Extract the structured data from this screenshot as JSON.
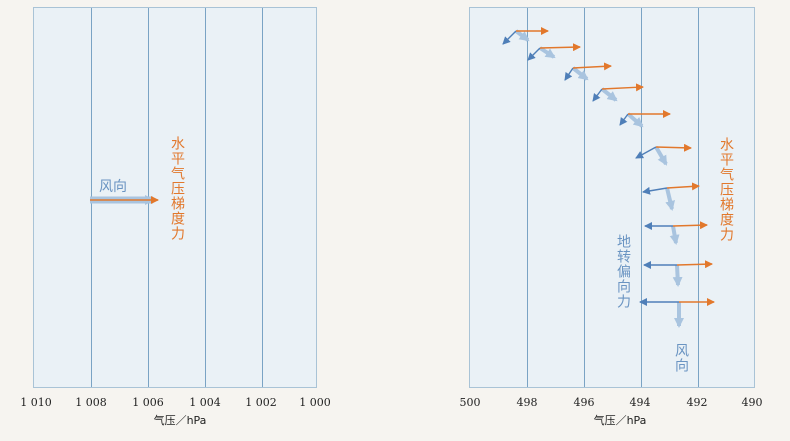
{
  "colors": {
    "isobar": "#7aa3c4",
    "pressure_gradient_force": "#e2782c",
    "coriolis_force": "#4f7fb8",
    "wind": "#a9c4df"
  },
  "left_panel": {
    "ticks": [
      "1 010",
      "1 008",
      "1 006",
      "1 004",
      "1 002",
      "1 000"
    ],
    "axis_title": "气压／hPa",
    "wind_label": "风向",
    "pgf_label": "水平气压梯度力"
  },
  "right_panel": {
    "ticks": [
      "500",
      "498",
      "496",
      "494",
      "492",
      "490"
    ],
    "axis_title": "气压／hPa",
    "pgf_label": "水平气压梯度力",
    "coriolis_label": "地转偏向力",
    "wind_label": "风向"
  }
}
